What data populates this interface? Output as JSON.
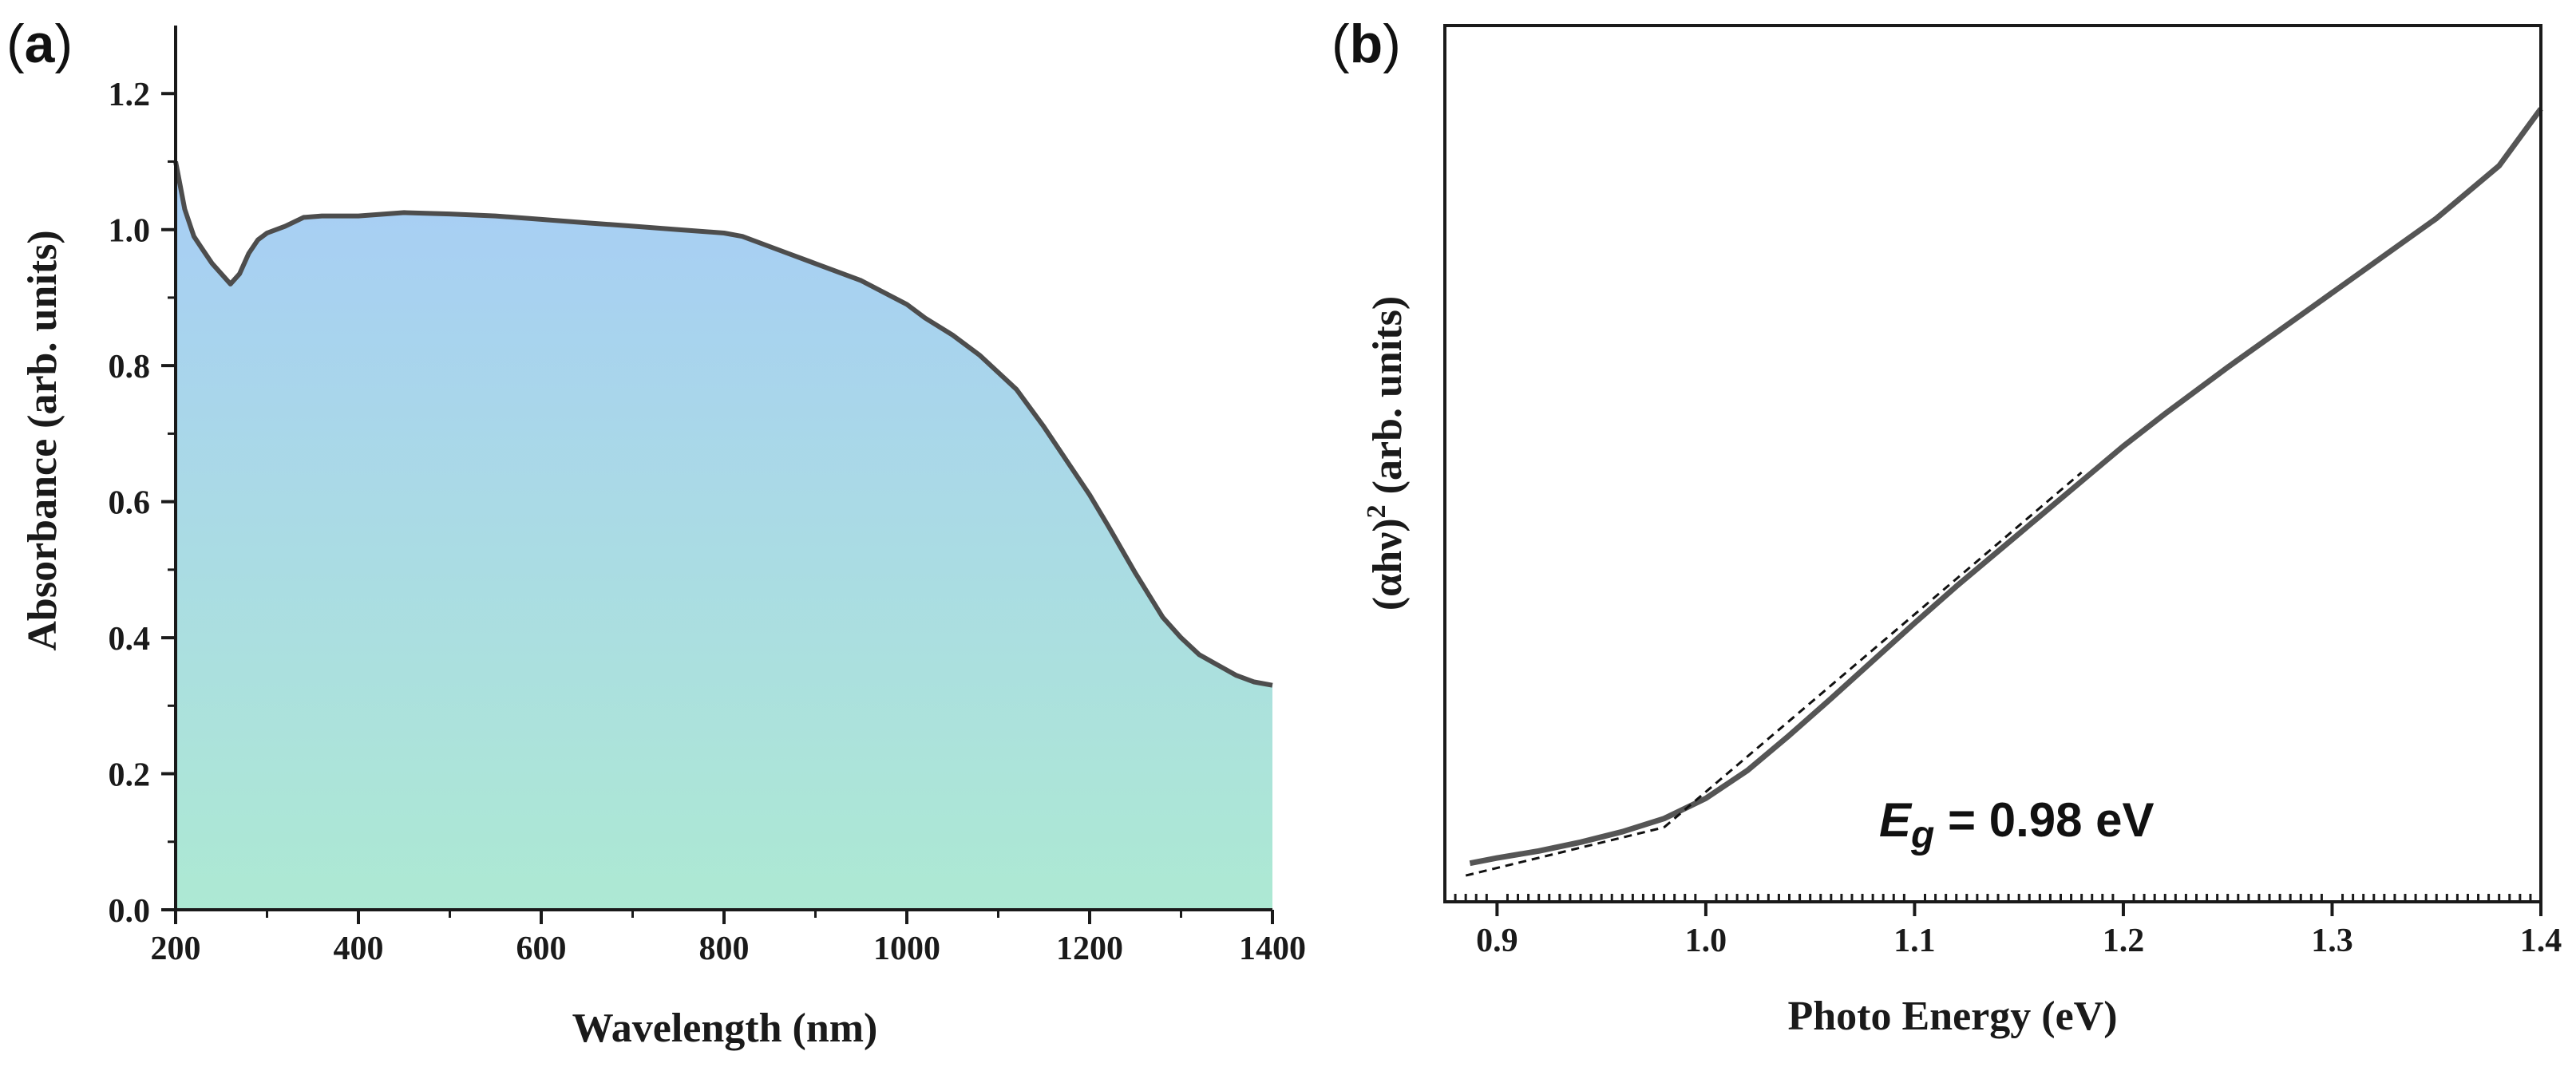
{
  "chart_data": [
    {
      "type": "area",
      "panel_label": "(a)",
      "panel_letter": "a",
      "xlabel": "Wavelength (nm)",
      "ylabel": "Absorbance (arb. units)",
      "xlim": [
        200,
        1400
      ],
      "ylim": [
        0,
        1.3
      ],
      "xticks": [
        200,
        400,
        600,
        800,
        1000,
        1200,
        1400
      ],
      "xtick_labels": [
        "200",
        "400",
        "600",
        "800",
        "1000",
        "1200",
        "1400"
      ],
      "yticks": [
        0.0,
        0.2,
        0.4,
        0.6,
        0.8,
        1.0,
        1.2
      ],
      "ytick_labels": [
        "0.0",
        "0.2",
        "0.4",
        "0.6",
        "0.8",
        "1.0",
        "1.2"
      ],
      "grid": false,
      "series": [
        {
          "name": "Absorbance",
          "x": [
            200,
            210,
            220,
            230,
            240,
            250,
            260,
            270,
            280,
            290,
            300,
            320,
            340,
            360,
            400,
            450,
            500,
            550,
            600,
            650,
            700,
            750,
            800,
            820,
            850,
            870,
            900,
            950,
            1000,
            1020,
            1050,
            1080,
            1100,
            1120,
            1150,
            1180,
            1200,
            1220,
            1250,
            1280,
            1300,
            1320,
            1340,
            1360,
            1380,
            1400
          ],
          "y": [
            1.1,
            1.03,
            0.99,
            0.97,
            0.95,
            0.935,
            0.92,
            0.935,
            0.965,
            0.985,
            0.995,
            1.005,
            1.018,
            1.02,
            1.02,
            1.025,
            1.023,
            1.02,
            1.015,
            1.01,
            1.005,
            1.0,
            0.995,
            0.99,
            0.975,
            0.965,
            0.95,
            0.925,
            0.89,
            0.87,
            0.845,
            0.815,
            0.79,
            0.765,
            0.71,
            0.65,
            0.61,
            0.565,
            0.495,
            0.43,
            0.4,
            0.375,
            0.36,
            0.345,
            0.335,
            0.33
          ]
        }
      ],
      "fill_gradient": [
        "#a7cdf6",
        "#ade9d3"
      ],
      "line_color": "#4d4d4d"
    },
    {
      "type": "line",
      "panel_label": "(b)",
      "panel_letter": "b",
      "xlabel": "Photo Energy (eV)",
      "ylabel": "(αhν)² (arb. units)",
      "ylabel_base": "(αhν)",
      "ylabel_sup": "2",
      "ylabel_rest": " (arb. units)",
      "xlim": [
        0.875,
        1.4
      ],
      "ylim": [
        0,
        1.0
      ],
      "xticks": [
        0.9,
        1.0,
        1.1,
        1.2,
        1.3,
        1.4
      ],
      "xtick_labels": [
        "0.9",
        "1.0",
        "1.1",
        "1.2",
        "1.3",
        "1.4"
      ],
      "yticks": [],
      "grid": false,
      "annotation": {
        "symbol": "E",
        "subscript": "g",
        "text": " = 0.98 eV",
        "full": "Eg = 0.98 eV"
      },
      "series": [
        {
          "name": "(αhν)²",
          "style": "solid",
          "x": [
            0.887,
            0.9,
            0.92,
            0.94,
            0.96,
            0.98,
            1.0,
            1.02,
            1.04,
            1.06,
            1.08,
            1.1,
            1.12,
            1.14,
            1.16,
            1.18,
            1.2,
            1.22,
            1.25,
            1.3,
            1.35,
            1.38,
            1.4
          ],
          "y": [
            0.044,
            0.05,
            0.058,
            0.068,
            0.08,
            0.095,
            0.118,
            0.15,
            0.19,
            0.232,
            0.275,
            0.318,
            0.36,
            0.4,
            0.44,
            0.48,
            0.52,
            0.557,
            0.61,
            0.695,
            0.78,
            0.84,
            0.905
          ]
        },
        {
          "name": "baseline fit",
          "style": "dashed",
          "x": [
            0.885,
            0.98
          ],
          "y": [
            0.03,
            0.085
          ]
        },
        {
          "name": "linear fit",
          "style": "dashed",
          "x": [
            0.98,
            1.18
          ],
          "y": [
            0.085,
            0.49
          ]
        }
      ],
      "line_color": "#555555"
    }
  ]
}
